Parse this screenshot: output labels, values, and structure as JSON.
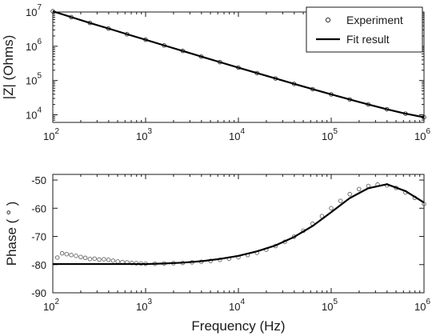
{
  "chart_data": [
    {
      "type": "scatter",
      "xscale": "log",
      "yscale": "log",
      "xlim": [
        100,
        1000000
      ],
      "ylim": [
        6000,
        10000000
      ],
      "xlabel": "",
      "ylabel": "|Z| (Ohms)",
      "x_ticks": [
        100,
        1000,
        10000,
        100000,
        1000000
      ],
      "x_tick_labels": [
        {
          "base": "10",
          "exp": "2"
        },
        {
          "base": "10",
          "exp": "3"
        },
        {
          "base": "10",
          "exp": "4"
        },
        {
          "base": "10",
          "exp": "5"
        },
        {
          "base": "10",
          "exp": "6"
        }
      ],
      "y_ticks": [
        10000,
        100000,
        1000000,
        10000000
      ],
      "y_tick_labels": [
        {
          "base": "10",
          "exp": "4"
        },
        {
          "base": "10",
          "exp": "5"
        },
        {
          "base": "10",
          "exp": "6"
        },
        {
          "base": "10",
          "exp": "7"
        }
      ],
      "grid": false,
      "legend_position": "top-right",
      "series": [
        {
          "name": "Experiment",
          "marker": "open-circle",
          "color": "#333333",
          "x": [
            100,
            158,
            251,
            398,
            631,
            1000,
            1585,
            2512,
            3981,
            6310,
            10000,
            15849,
            25119,
            39811,
            63096,
            100000,
            158489,
            251189,
            398107,
            630957,
            1000000
          ],
          "y": [
            10500000,
            7100000,
            4800000,
            3300000,
            2250000,
            1550000,
            1060000,
            730000,
            500000,
            345000,
            238000,
            165000,
            115000,
            80000,
            56000,
            39500,
            28000,
            20000,
            14500,
            10800,
            8500
          ]
        },
        {
          "name": "Fit result",
          "marker": "line",
          "color": "#000000",
          "x": [
            100,
            158,
            251,
            398,
            631,
            1000,
            1585,
            2512,
            3981,
            6310,
            10000,
            15849,
            25119,
            39811,
            63096,
            100000,
            158489,
            251189,
            398107,
            630957,
            1000000
          ],
          "y": [
            10500000,
            7100000,
            4800000,
            3300000,
            2250000,
            1550000,
            1060000,
            730000,
            500000,
            345000,
            238000,
            165000,
            115000,
            80000,
            56000,
            39500,
            28000,
            20000,
            14500,
            10800,
            8500
          ]
        }
      ]
    },
    {
      "type": "scatter",
      "xscale": "log",
      "yscale": "linear",
      "xlim": [
        100,
        1000000
      ],
      "ylim": [
        -90,
        -48
      ],
      "xlabel": "Frequency (Hz)",
      "ylabel": "Phase ( ° )",
      "x_ticks": [
        100,
        1000,
        10000,
        100000,
        1000000
      ],
      "x_tick_labels": [
        {
          "base": "10",
          "exp": "2"
        },
        {
          "base": "10",
          "exp": "3"
        },
        {
          "base": "10",
          "exp": "4"
        },
        {
          "base": "10",
          "exp": "5"
        },
        {
          "base": "10",
          "exp": "6"
        }
      ],
      "y_ticks": [
        -90,
        -80,
        -70,
        -60,
        -50
      ],
      "y_tick_labels": [
        "-90",
        "-80",
        "-70",
        "-60",
        "-50"
      ],
      "grid": false,
      "series": [
        {
          "name": "Experiment",
          "marker": "open-circle",
          "color": "#666666",
          "x": [
            112,
            126,
            141,
            158,
            178,
            200,
            224,
            251,
            282,
            316,
            355,
            398,
            447,
            501,
            562,
            631,
            708,
            794,
            891,
            1000,
            1259,
            1585,
            1995,
            2512,
            3162,
            3981,
            5012,
            6310,
            7943,
            10000,
            12589,
            15849,
            19953,
            25119,
            31623,
            39811,
            50119,
            63096,
            79433,
            100000,
            125893,
            158489,
            199526,
            251189,
            316228,
            398107,
            501187,
            630957,
            794328,
            1000000
          ],
          "y": [
            -77.5,
            -76.0,
            -76.3,
            -76.6,
            -76.9,
            -77.3,
            -77.6,
            -78.0,
            -77.9,
            -78.2,
            -78.1,
            -78.3,
            -78.6,
            -78.9,
            -79.1,
            -79.2,
            -79.4,
            -79.5,
            -79.6,
            -79.7,
            -79.7,
            -79.6,
            -79.5,
            -79.4,
            -79.2,
            -79.0,
            -78.7,
            -78.3,
            -77.9,
            -77.4,
            -76.6,
            -75.8,
            -74.7,
            -73.4,
            -71.9,
            -70.1,
            -68.0,
            -65.5,
            -62.8,
            -60.0,
            -57.4,
            -55.0,
            -53.2,
            -52.1,
            -51.6,
            -51.9,
            -52.8,
            -54.4,
            -56.3,
            -58.5
          ]
        },
        {
          "name": "Fit result",
          "marker": "line",
          "color": "#000000",
          "x": [
            100,
            158,
            251,
            398,
            631,
            1000,
            1585,
            2512,
            3981,
            6310,
            10000,
            15849,
            25119,
            39811,
            63096,
            100000,
            158489,
            251189,
            398107,
            630957,
            1000000
          ],
          "y": [
            -79.8,
            -79.8,
            -79.8,
            -79.8,
            -79.8,
            -79.8,
            -79.6,
            -79.3,
            -78.8,
            -78.0,
            -76.9,
            -75.3,
            -73.2,
            -70.2,
            -66.3,
            -61.4,
            -56.4,
            -52.9,
            -51.5,
            -53.9,
            -58.0
          ]
        }
      ]
    }
  ]
}
